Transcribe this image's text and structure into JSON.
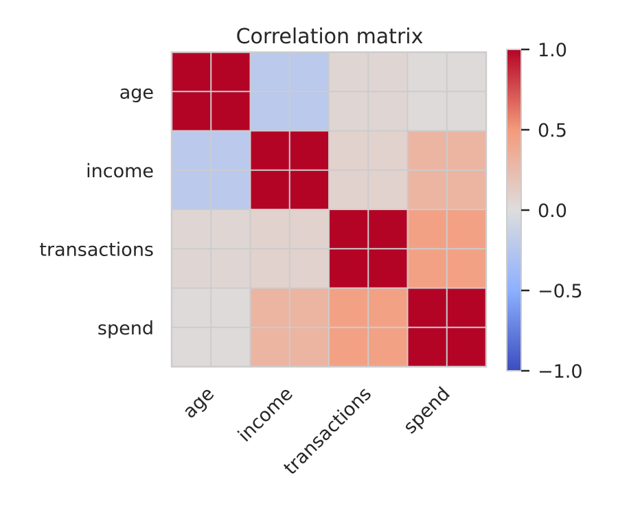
{
  "chart_data": {
    "type": "heatmap",
    "title": "Correlation matrix",
    "xlabel": "",
    "ylabel": "",
    "variables": [
      "age",
      "income",
      "transactions",
      "spend"
    ],
    "values": [
      [
        1.0,
        -0.22,
        0.05,
        0.02
      ],
      [
        -0.22,
        1.0,
        0.08,
        0.3
      ],
      [
        0.05,
        0.08,
        1.0,
        0.45
      ],
      [
        0.02,
        0.3,
        0.45,
        1.0
      ]
    ],
    "colormap": "coolwarm",
    "color_range": [
      -1.0,
      1.0
    ],
    "colorbar_ticks": [
      1.0,
      0.5,
      0.0,
      -0.5,
      -1.0
    ],
    "colorbar_tick_labels": [
      "1.0",
      "0.5",
      "0.0",
      "−0.5",
      "−1.0"
    ],
    "grid": true,
    "grid_color": "#cccccc",
    "colorbar_position": "right"
  }
}
